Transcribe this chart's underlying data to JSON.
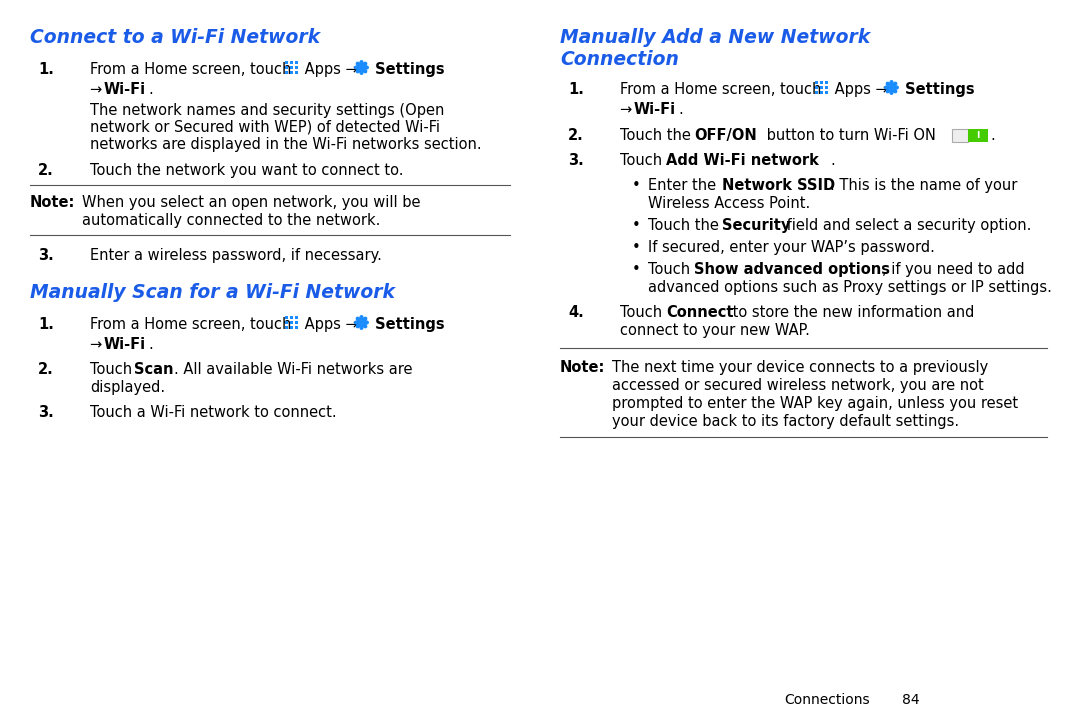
{
  "bg_color": "#ffffff",
  "title_color": "#1a5ce8",
  "text_color": "#000000",
  "heading1": "Connect to a Wi-Fi Network",
  "heading2": "Manually Scan for a Wi-Fi Network",
  "heading3_line1": "Manually Add a New Network",
  "heading3_line2": "Connection",
  "footer_text": "Connections",
  "footer_page": "84"
}
